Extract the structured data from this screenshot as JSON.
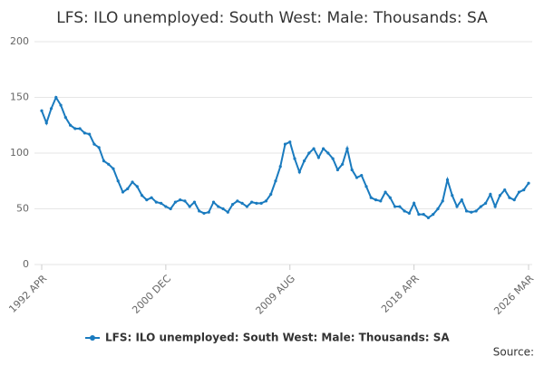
{
  "chart_data": {
    "type": "line",
    "title": "LFS: ILO unemployed: South West: Male: Thousands: SA",
    "source": "Source:",
    "categories": [
      "1992 APR",
      null,
      null,
      null,
      null,
      null,
      null,
      null,
      null,
      null,
      null,
      null,
      null,
      null,
      null,
      null,
      null,
      null,
      null,
      null,
      null,
      null,
      null,
      null,
      null,
      null,
      "2000 DEC",
      null,
      null,
      null,
      null,
      null,
      null,
      null,
      null,
      null,
      null,
      null,
      null,
      null,
      null,
      null,
      null,
      null,
      null,
      null,
      null,
      null,
      null,
      null,
      null,
      null,
      "2009 AUG",
      null,
      null,
      null,
      null,
      null,
      null,
      null,
      null,
      null,
      null,
      null,
      null,
      null,
      null,
      null,
      null,
      null,
      null,
      null,
      null,
      null,
      null,
      null,
      null,
      null,
      "2018 APR",
      null,
      null,
      null,
      null,
      null,
      null,
      null,
      null,
      null,
      null,
      null,
      null,
      null,
      null,
      null,
      null,
      null,
      null,
      null,
      null,
      null,
      null,
      null,
      "2026 MAR"
    ],
    "series": [
      {
        "name": "LFS: ILO unemployed: South West: Male: Thousands: SA",
        "color": "#1a7bbf",
        "values": [
          138,
          127,
          140,
          150,
          143,
          132,
          125,
          122,
          122,
          118,
          117,
          108,
          105,
          93,
          90,
          86,
          75,
          65,
          68,
          74,
          70,
          62,
          58,
          60,
          56,
          55,
          52,
          50,
          56,
          58,
          57,
          52,
          56,
          48,
          46,
          47,
          56,
          52,
          50,
          47,
          54,
          57,
          55,
          52,
          56,
          55,
          55,
          57,
          63,
          75,
          88,
          108,
          110,
          95,
          83,
          93,
          100,
          104,
          96,
          104,
          100,
          95,
          85,
          90,
          104,
          85,
          78,
          80,
          70,
          60,
          58,
          57,
          65,
          60,
          52,
          52,
          48,
          46,
          55,
          45,
          45,
          42,
          45,
          50,
          57,
          76,
          62,
          52,
          58,
          48,
          47,
          48,
          52,
          55,
          63,
          52,
          62,
          67,
          60,
          58,
          65,
          67,
          73
        ]
      }
    ],
    "ylim": [
      0,
      200
    ],
    "yticks": [
      0,
      50,
      100,
      150,
      200
    ],
    "grid": true,
    "legend": "bottom"
  }
}
